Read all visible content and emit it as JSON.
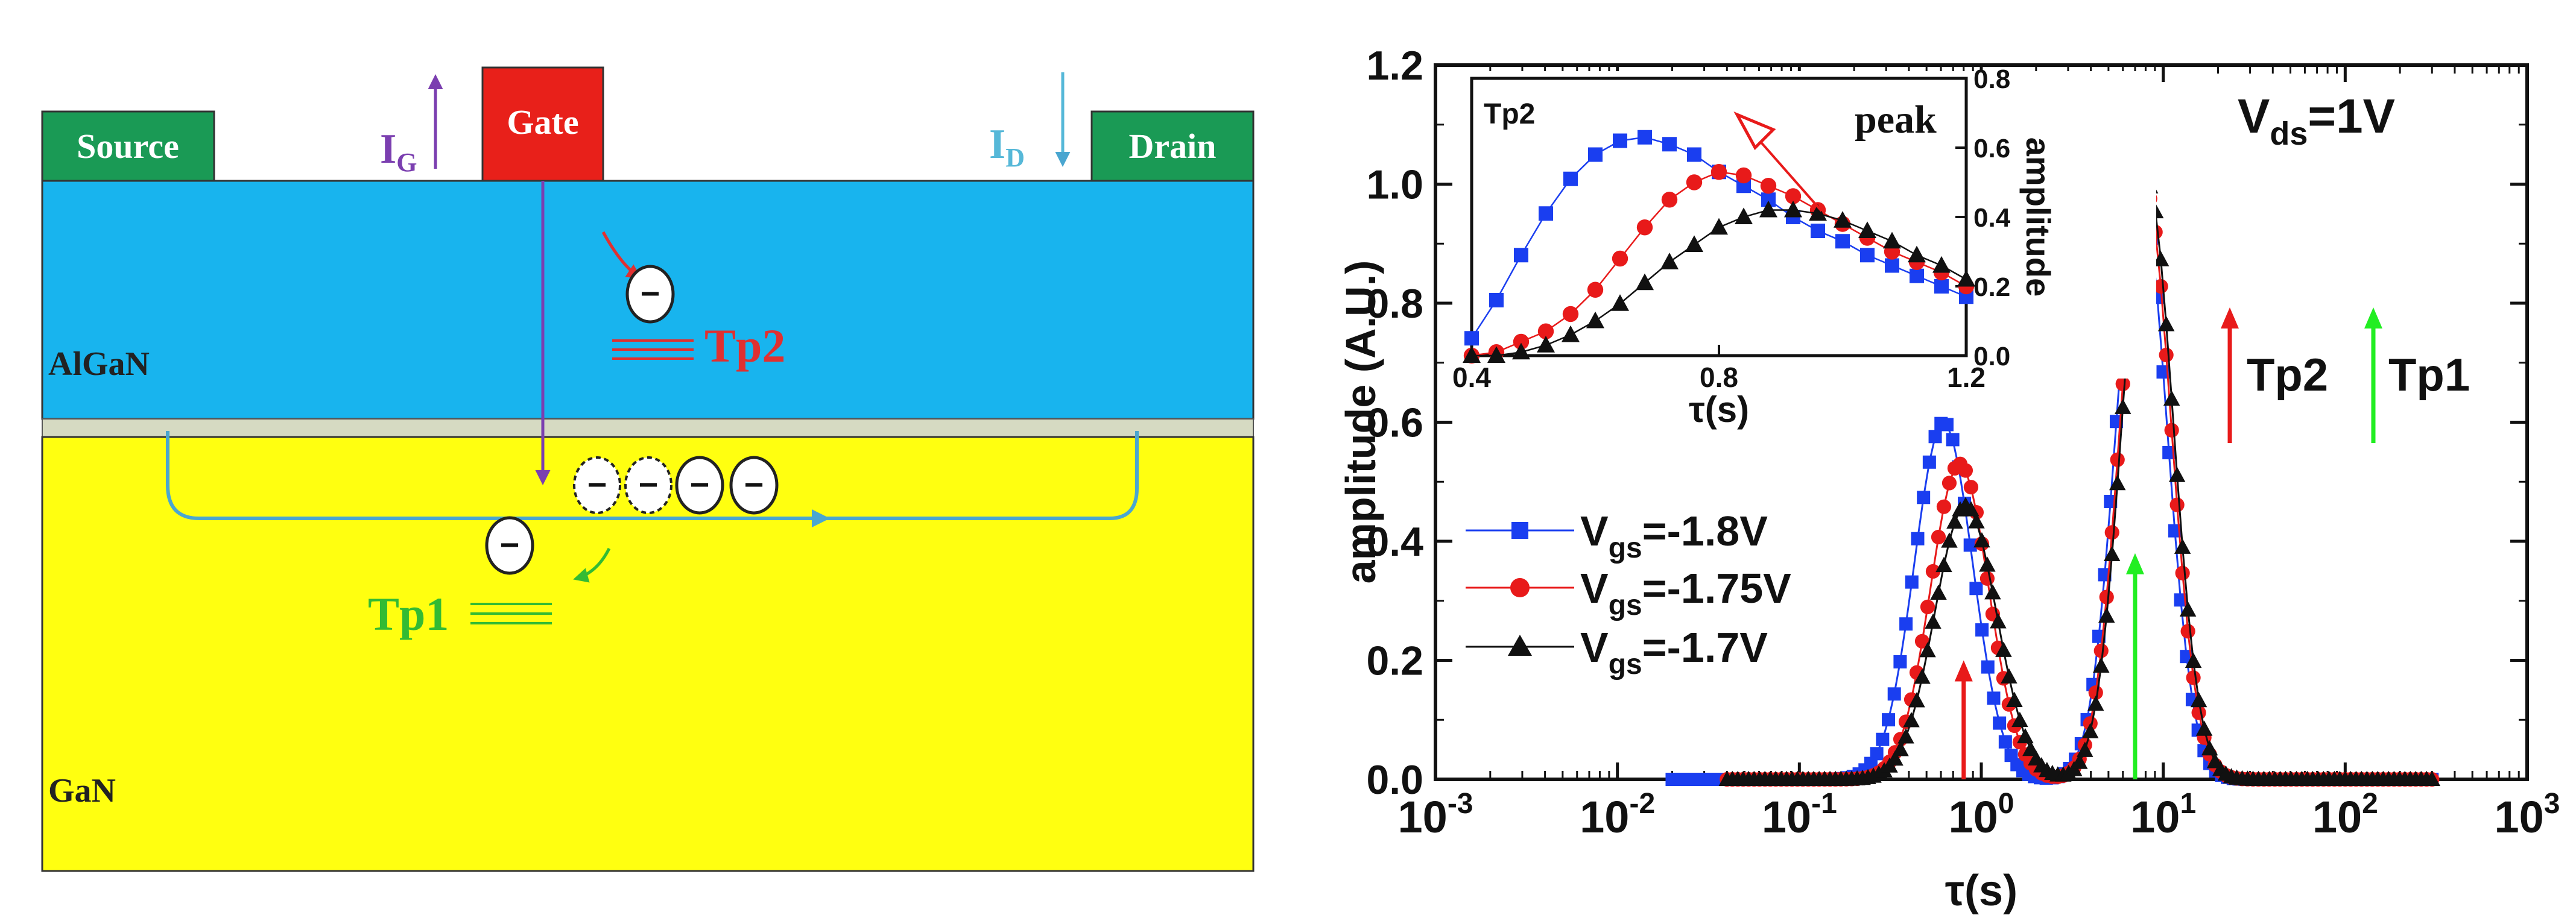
{
  "device": {
    "source_label": "Source",
    "gate_label": "Gate",
    "drain_label": "Drain",
    "ig": {
      "main": "I",
      "sub": "G"
    },
    "id": {
      "main": "I",
      "sub": "D"
    },
    "algan_label": "AlGaN",
    "gan_label": "GaN",
    "tp2_label": "Tp2",
    "tp1_label": "Tp1",
    "electron_symbol": "−",
    "colors": {
      "contact": "#1a9a55",
      "gate": "#e8201a",
      "algan": "#18b4ee",
      "gan": "#ffff10",
      "interface": "#d6dac2",
      "ig_arrow": "#7b3fb0",
      "id_arrow": "#56b8d8",
      "channel": "#4aa6d0",
      "tp2": "#e03030",
      "tp1": "#33bb33"
    }
  },
  "chart_data": [
    {
      "type": "scatter-line",
      "title": "",
      "annotation_vds": {
        "main": "V",
        "sub": "ds",
        "rest": "=1V"
      },
      "xlabel": "τ(s)",
      "ylabel": "amplitude (A.U.)",
      "xscale": "log",
      "xlim": [
        0.001,
        1000
      ],
      "ylim": [
        0,
        1.2
      ],
      "x_tick_labels": [
        {
          "base": "10",
          "exp": "-3"
        },
        {
          "base": "10",
          "exp": "-2"
        },
        {
          "base": "10",
          "exp": "-1"
        },
        {
          "base": "10",
          "exp": "0"
        },
        {
          "base": "10",
          "exp": "1"
        },
        {
          "base": "10",
          "exp": "2"
        },
        {
          "base": "10",
          "exp": "3"
        }
      ],
      "y_tick_labels": [
        "0.0",
        "0.2",
        "0.4",
        "0.6",
        "0.8",
        "1.0",
        "1.2"
      ],
      "series": [
        {
          "name": "Vgs=-1.8V",
          "label_main": "V",
          "label_sub": "gs",
          "label_rest": "=-1.8V",
          "color": "#1a3ef0",
          "marker": "square",
          "peaks": [
            {
              "tau": 0.62,
              "amp": 0.6,
              "w": 0.16
            },
            {
              "tau": 7.6,
              "amp": 0.98,
              "w": 0.14
            }
          ],
          "x_range": [
            0.02,
            300
          ]
        },
        {
          "name": "Vgs=-1.75V",
          "label_main": "V",
          "label_sub": "gs",
          "label_rest": "=-1.75V",
          "color": "#e81a1a",
          "marker": "circle",
          "peaks": [
            {
              "tau": 0.76,
              "amp": 0.53,
              "w": 0.16
            },
            {
              "tau": 8.0,
              "amp": 0.99,
              "w": 0.14
            }
          ],
          "x_range": [
            0.04,
            300
          ]
        },
        {
          "name": "Vgs=-1.7V",
          "label_main": "V",
          "label_sub": "gs",
          "label_rest": "=-1.7V",
          "color": "#111111",
          "marker": "triangle",
          "peaks": [
            {
              "tau": 0.82,
              "amp": 0.46,
              "w": 0.17
            },
            {
              "tau": 8.2,
              "amp": 1.0,
              "w": 0.14
            }
          ],
          "x_range": [
            0.04,
            300
          ]
        }
      ],
      "arrows": [
        {
          "label": "Tp2",
          "color": "#e81a1a",
          "x": 0.8,
          "y_from": 0.0,
          "y_to": 0.2
        },
        {
          "label": "Tp1",
          "color": "#22ee22",
          "x": 7.0,
          "y_from": 0.0,
          "y_to": 0.38
        }
      ],
      "legend_tp2": "Tp2",
      "legend_tp1": "Tp1"
    },
    {
      "type": "scatter-line",
      "title": "Tp2",
      "annotation": "peak",
      "xlabel": "τ(s)",
      "ylabel": "amplitude",
      "xlim": [
        0.4,
        1.2
      ],
      "ylim": [
        0,
        0.8
      ],
      "x_tick_labels": [
        "0.4",
        "0.8",
        "1.2"
      ],
      "y_tick_labels": [
        "0.0",
        "0.2",
        "0.4",
        "0.6",
        "0.8"
      ],
      "series": [
        {
          "name": "Vgs=-1.8V",
          "color": "#1a3ef0",
          "marker": "square",
          "x": [
            0.4,
            0.44,
            0.48,
            0.52,
            0.56,
            0.6,
            0.64,
            0.68,
            0.72,
            0.76,
            0.8,
            0.84,
            0.88,
            0.92,
            0.96,
            1.0,
            1.04,
            1.08,
            1.12,
            1.16,
            1.2
          ],
          "y": [
            0.05,
            0.16,
            0.29,
            0.41,
            0.51,
            0.58,
            0.62,
            0.63,
            0.61,
            0.58,
            0.53,
            0.49,
            0.45,
            0.4,
            0.36,
            0.33,
            0.29,
            0.26,
            0.23,
            0.2,
            0.17
          ]
        },
        {
          "name": "Vgs=-1.75V",
          "color": "#e81a1a",
          "marker": "circle",
          "x": [
            0.4,
            0.44,
            0.48,
            0.52,
            0.56,
            0.6,
            0.64,
            0.68,
            0.72,
            0.76,
            0.8,
            0.84,
            0.88,
            0.92,
            0.96,
            1.0,
            1.04,
            1.08,
            1.12,
            1.16,
            1.2
          ],
          "y": [
            0.0,
            0.01,
            0.04,
            0.07,
            0.12,
            0.19,
            0.28,
            0.37,
            0.45,
            0.5,
            0.53,
            0.52,
            0.49,
            0.46,
            0.42,
            0.38,
            0.34,
            0.3,
            0.27,
            0.24,
            0.2
          ]
        },
        {
          "name": "Vgs=-1.7V",
          "color": "#111111",
          "marker": "triangle",
          "x": [
            0.4,
            0.44,
            0.48,
            0.52,
            0.56,
            0.6,
            0.64,
            0.68,
            0.72,
            0.76,
            0.8,
            0.84,
            0.88,
            0.92,
            0.96,
            1.0,
            1.04,
            1.08,
            1.12,
            1.16,
            1.2
          ],
          "y": [
            0.0,
            0.0,
            0.01,
            0.03,
            0.06,
            0.1,
            0.15,
            0.21,
            0.27,
            0.32,
            0.37,
            0.4,
            0.42,
            0.42,
            0.41,
            0.39,
            0.36,
            0.33,
            0.29,
            0.26,
            0.22
          ]
        }
      ]
    }
  ]
}
